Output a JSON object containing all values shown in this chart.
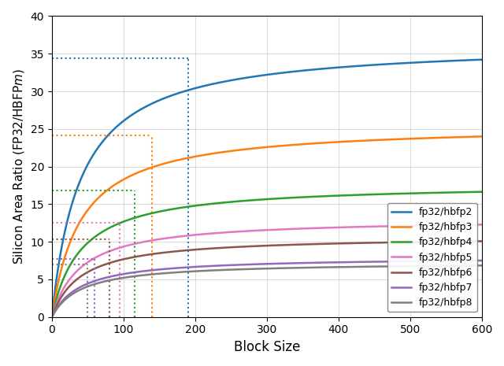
{
  "series": [
    {
      "label": "fp32/hbfp2",
      "color": "#1f77b4",
      "asymptote": 36.5,
      "c": 40,
      "vline_x": 190,
      "hline_y": 34.4
    },
    {
      "label": "fp32/hbfp3",
      "color": "#ff7f0e",
      "asymptote": 25.6,
      "c": 40,
      "vline_x": 140,
      "hline_y": 24.1
    },
    {
      "label": "fp32/hbfp4",
      "color": "#2ca02c",
      "asymptote": 17.75,
      "c": 40,
      "vline_x": 115,
      "hline_y": 16.85
    },
    {
      "label": "fp32/hbfp5",
      "color": "#e377c2",
      "asymptote": 13.1,
      "c": 40,
      "vline_x": 95,
      "hline_y": 12.5
    },
    {
      "label": "fp32/hbfp6",
      "color": "#8c564b",
      "asymptote": 10.75,
      "c": 40,
      "vline_x": 80,
      "hline_y": 10.3
    },
    {
      "label": "fp32/hbfp7",
      "color": "#9467bd",
      "asymptote": 8.0,
      "c": 40,
      "vline_x": 60,
      "hline_y": 7.7
    },
    {
      "label": "fp32/hbfp8",
      "color": "#7f7f7f",
      "asymptote": 7.3,
      "c": 40,
      "vline_x": 50,
      "hline_y": 7.0
    }
  ],
  "xlabel": "Block Size",
  "ylabel": "Silicon Area Ratio (FP32/HBFPm)",
  "ylabel_italic_suffix": "m",
  "xlim": [
    0,
    600
  ],
  "ylim": [
    0,
    40
  ],
  "yticks": [
    0,
    5,
    10,
    15,
    20,
    25,
    30,
    35,
    40
  ],
  "xticks": [
    0,
    100,
    200,
    300,
    400,
    500,
    600
  ],
  "figsize": [
    6.4,
    4.65
  ],
  "dpi": 100
}
